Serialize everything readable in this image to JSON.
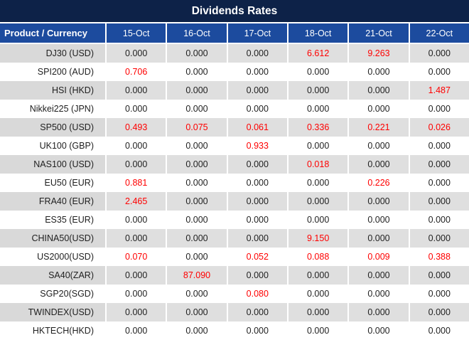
{
  "title": "Dividends Rates",
  "colors": {
    "title_bg": "#0D2248",
    "header_bg": "#1C4B9E",
    "header_text": "#FFFFFF",
    "alt_row_label_bg": "#D9D9D9",
    "alt_row_cell_bg": "#DFDFDF",
    "row_bg": "#FFFFFF",
    "separator": "#FFFFFF",
    "text": "#1F1F1F",
    "highlight": "#FF0000"
  },
  "table": {
    "product_header": "Product / Currency",
    "date_columns": [
      "15-Oct",
      "16-Oct",
      "17-Oct",
      "18-Oct",
      "21-Oct",
      "22-Oct"
    ],
    "rows": [
      {
        "product": "DJ30 (USD)",
        "values": [
          "0.000",
          "0.000",
          "0.000",
          "6.612",
          "9.263",
          "0.000"
        ]
      },
      {
        "product": "SPI200 (AUD)",
        "values": [
          "0.706",
          "0.000",
          "0.000",
          "0.000",
          "0.000",
          "0.000"
        ]
      },
      {
        "product": "HSI (HKD)",
        "values": [
          "0.000",
          "0.000",
          "0.000",
          "0.000",
          "0.000",
          "1.487"
        ]
      },
      {
        "product": "Nikkei225 (JPN)",
        "values": [
          "0.000",
          "0.000",
          "0.000",
          "0.000",
          "0.000",
          "0.000"
        ]
      },
      {
        "product": "SP500 (USD)",
        "values": [
          "0.493",
          "0.075",
          "0.061",
          "0.336",
          "0.221",
          "0.026"
        ]
      },
      {
        "product": "UK100 (GBP)",
        "values": [
          "0.000",
          "0.000",
          "0.933",
          "0.000",
          "0.000",
          "0.000"
        ]
      },
      {
        "product": "NAS100 (USD)",
        "values": [
          "0.000",
          "0.000",
          "0.000",
          "0.018",
          "0.000",
          "0.000"
        ]
      },
      {
        "product": "EU50 (EUR)",
        "values": [
          "0.881",
          "0.000",
          "0.000",
          "0.000",
          "0.226",
          "0.000"
        ]
      },
      {
        "product": "FRA40 (EUR)",
        "values": [
          "2.465",
          "0.000",
          "0.000",
          "0.000",
          "0.000",
          "0.000"
        ]
      },
      {
        "product": "ES35 (EUR)",
        "values": [
          "0.000",
          "0.000",
          "0.000",
          "0.000",
          "0.000",
          "0.000"
        ]
      },
      {
        "product": "CHINA50(USD)",
        "values": [
          "0.000",
          "0.000",
          "0.000",
          "9.150",
          "0.000",
          "0.000"
        ]
      },
      {
        "product": "US2000(USD)",
        "values": [
          "0.070",
          "0.000",
          "0.052",
          "0.088",
          "0.009",
          "0.388"
        ]
      },
      {
        "product": "SA40(ZAR)",
        "values": [
          "0.000",
          "87.090",
          "0.000",
          "0.000",
          "0.000",
          "0.000"
        ]
      },
      {
        "product": "SGP20(SGD)",
        "values": [
          "0.000",
          "0.000",
          "0.080",
          "0.000",
          "0.000",
          "0.000"
        ]
      },
      {
        "product": "TWINDEX(USD)",
        "values": [
          "0.000",
          "0.000",
          "0.000",
          "0.000",
          "0.000",
          "0.000"
        ]
      },
      {
        "product": "HKTECH(HKD)",
        "values": [
          "0.000",
          "0.000",
          "0.000",
          "0.000",
          "0.000",
          "0.000"
        ]
      }
    ]
  }
}
